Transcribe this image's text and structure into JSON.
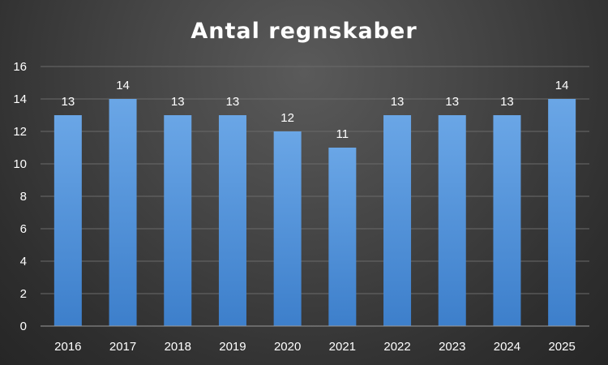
{
  "chart_data": {
    "type": "bar",
    "title": "Antal regnskaber",
    "categories": [
      "2016",
      "2017",
      "2018",
      "2019",
      "2020",
      "2021",
      "2022",
      "2023",
      "2024",
      "2025"
    ],
    "values": [
      13,
      14,
      13,
      13,
      12,
      11,
      13,
      13,
      13,
      14
    ],
    "xlabel": "",
    "ylabel": "",
    "ylim": [
      0,
      16
    ],
    "yticks": [
      0,
      2,
      4,
      6,
      8,
      10,
      12,
      14,
      16
    ],
    "grid": true,
    "legend": "none",
    "data_labels": true,
    "colors": {
      "bar_top": "#6aa6e6",
      "bar_bottom": "#3d7fcb",
      "background": "#3a3a3a"
    }
  }
}
